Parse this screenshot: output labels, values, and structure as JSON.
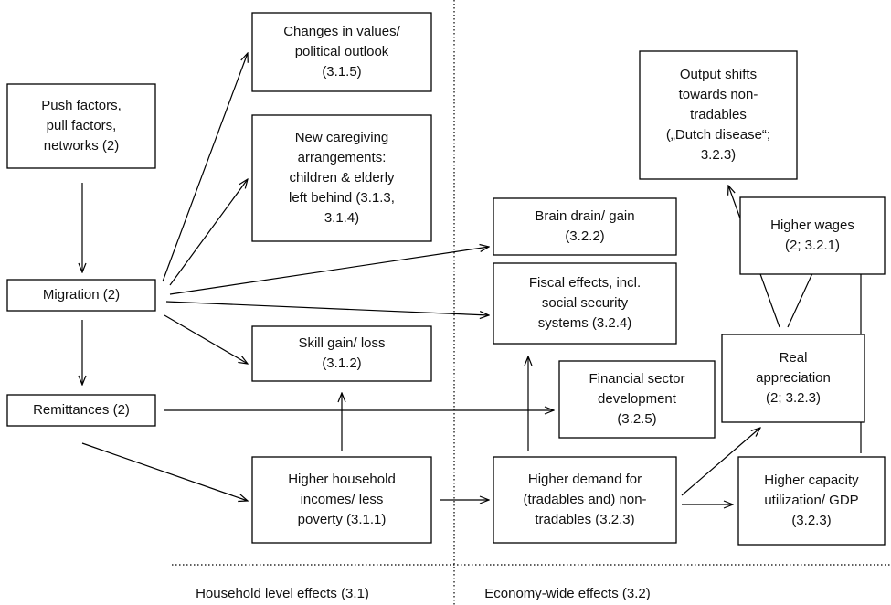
{
  "nodes": [
    {
      "lines": [
        "Push factors,",
        "pull factors,",
        "networks (2)"
      ]
    },
    {
      "lines": [
        "Migration (2)"
      ]
    },
    {
      "lines": [
        "Remittances (2)"
      ]
    },
    {
      "lines": [
        "Changes in values/",
        "political outlook",
        "(3.1.5)"
      ]
    },
    {
      "lines": [
        "New caregiving",
        "arrangements:",
        "children & elderly",
        "left behind (3.1.3,",
        "3.1.4)"
      ]
    },
    {
      "lines": [
        "Skill gain/ loss",
        "(3.1.2)"
      ]
    },
    {
      "lines": [
        "Higher household",
        "incomes/ less",
        "poverty (3.1.1)"
      ]
    },
    {
      "lines": [
        "Brain drain/ gain",
        "(3.2.2)"
      ]
    },
    {
      "lines": [
        "Fiscal effects, incl.",
        "social security",
        "systems (3.2.4)"
      ]
    },
    {
      "lines": [
        "Financial sector",
        "development",
        "(3.2.5)"
      ]
    },
    {
      "lines": [
        "Higher demand for",
        "(tradables and) non-",
        "tradables (3.2.3)"
      ]
    },
    {
      "lines": [
        "Output shifts",
        "towards non-",
        "tradables",
        "(„Dutch disease“;",
        "3.2.3)"
      ]
    },
    {
      "lines": [
        "Higher wages",
        "(2; 3.2.1)"
      ]
    },
    {
      "lines": [
        "Real",
        "appreciation",
        "(2; 3.2.3)"
      ]
    },
    {
      "lines": [
        "Higher capacity",
        "utilization/ GDP",
        "(3.2.3)"
      ]
    }
  ],
  "sections": [
    "Household level effects (3.1)",
    "Economy-wide effects (3.2)"
  ]
}
